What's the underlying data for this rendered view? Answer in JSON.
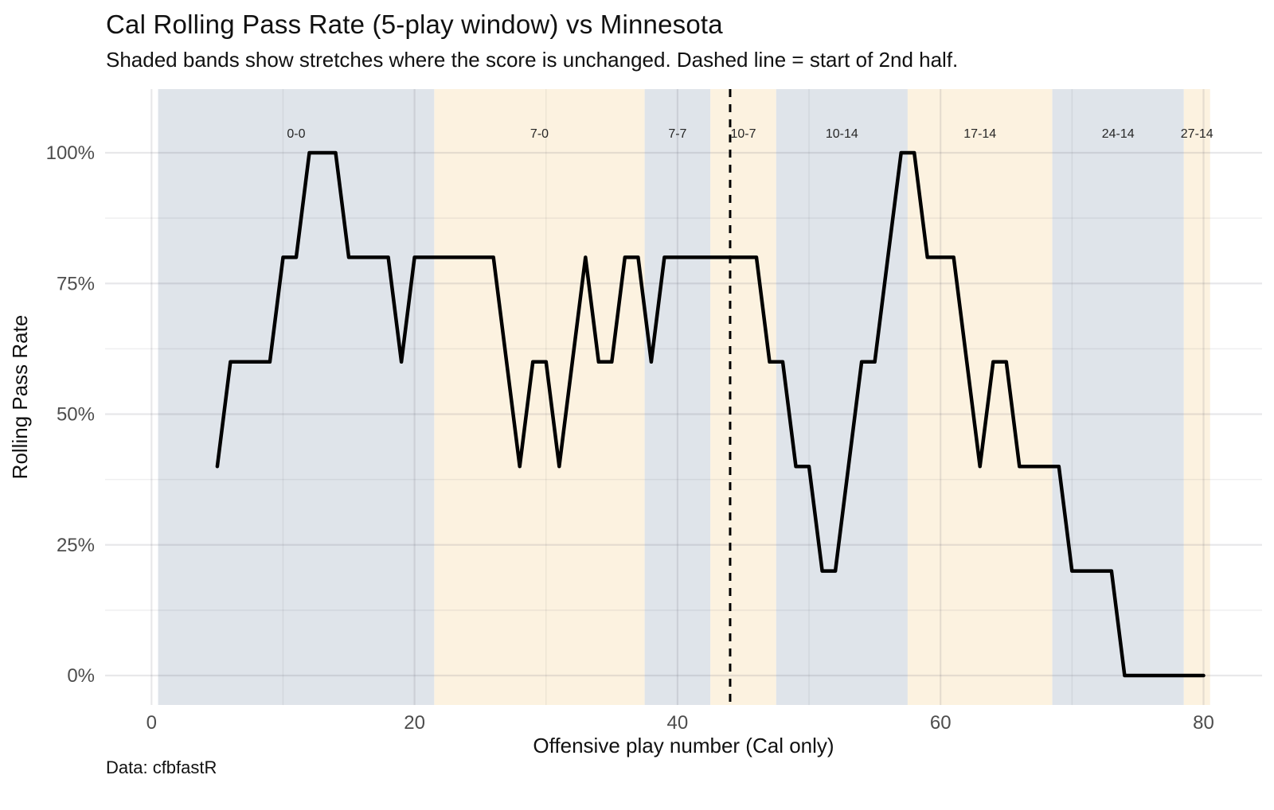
{
  "chart_data": {
    "type": "line",
    "title": "Cal Rolling Pass Rate (5-play window) vs Minnesota",
    "subtitle": "Shaded bands show stretches where the score is unchanged. Dashed line = start of 2nd half.",
    "caption": "Data: cfbfastR",
    "xlabel": "Offensive play number (Cal only)",
    "ylabel": "Rolling Pass Rate",
    "legend": "none",
    "grid": "major and minor, light on white panel",
    "xlim": [
      -3.5,
      84.5
    ],
    "ylim_pct": [
      -5.6,
      112.2
    ],
    "x_ticks": [
      {
        "v": 0,
        "label": "0"
      },
      {
        "v": 20,
        "label": "20"
      },
      {
        "v": 40,
        "label": "40"
      },
      {
        "v": 60,
        "label": "60"
      },
      {
        "v": 80,
        "label": "80"
      }
    ],
    "x_minor_ticks": [
      10,
      30,
      50,
      70
    ],
    "y_ticks": [
      {
        "v": 0,
        "label": "0%"
      },
      {
        "v": 25,
        "label": "25%"
      },
      {
        "v": 50,
        "label": "50%"
      },
      {
        "v": 75,
        "label": "75%"
      },
      {
        "v": 100,
        "label": "100%"
      }
    ],
    "y_minor_ticks": [
      12.5,
      37.5,
      62.5,
      87.5
    ],
    "halftime_line_x": 44,
    "score_bands": [
      {
        "label": "0-0",
        "start": 0.5,
        "end": 21.5,
        "tone": "blue"
      },
      {
        "label": "7-0",
        "start": 21.5,
        "end": 37.5,
        "tone": "cream"
      },
      {
        "label": "7-7",
        "start": 37.5,
        "end": 42.5,
        "tone": "blue"
      },
      {
        "label": "10-7",
        "start": 42.5,
        "end": 47.5,
        "tone": "cream"
      },
      {
        "label": "10-14",
        "start": 47.5,
        "end": 57.5,
        "tone": "blue"
      },
      {
        "label": "17-14",
        "start": 57.5,
        "end": 68.5,
        "tone": "cream"
      },
      {
        "label": "24-14",
        "start": 68.5,
        "end": 78.5,
        "tone": "blue"
      },
      {
        "label": "27-14",
        "start": 78.5,
        "end": 80.5,
        "tone": "cream"
      }
    ],
    "series": [
      {
        "name": "Cal rolling pass rate (%)",
        "x": [
          5,
          6,
          7,
          8,
          9,
          10,
          11,
          12,
          13,
          14,
          15,
          16,
          17,
          18,
          19,
          20,
          21,
          22,
          23,
          24,
          25,
          26,
          27,
          28,
          29,
          30,
          31,
          32,
          33,
          34,
          35,
          36,
          37,
          38,
          39,
          40,
          41,
          42,
          43,
          44,
          45,
          46,
          47,
          48,
          49,
          50,
          51,
          52,
          53,
          54,
          55,
          56,
          57,
          58,
          59,
          60,
          61,
          62,
          63,
          64,
          65,
          66,
          67,
          68,
          69,
          70,
          71,
          72,
          73,
          74,
          75,
          76,
          77,
          78,
          79,
          80
        ],
        "values": [
          40,
          60,
          60,
          60,
          60,
          80,
          80,
          100,
          100,
          100,
          80,
          80,
          80,
          80,
          60,
          80,
          80,
          80,
          80,
          80,
          80,
          80,
          60,
          40,
          60,
          60,
          40,
          60,
          80,
          60,
          60,
          80,
          80,
          60,
          80,
          80,
          80,
          80,
          80,
          80,
          80,
          80,
          60,
          60,
          40,
          40,
          20,
          20,
          40,
          60,
          60,
          80,
          100,
          100,
          80,
          80,
          80,
          60,
          40,
          60,
          60,
          40,
          40,
          40,
          40,
          20,
          20,
          20,
          20,
          0,
          0,
          0,
          0,
          0,
          0,
          0
        ]
      }
    ],
    "colors": {
      "band_blue": "#dfe4ea",
      "band_cream": "#fcf2e0",
      "line": "#000000",
      "dashed_line": "#000000",
      "grid_major": "rgba(75,80,92,0.13)",
      "grid_minor": "rgba(75,80,92,0.09)",
      "tick_text": "#4d4d4d",
      "band_label_text": "#262626",
      "text": "#111111"
    }
  }
}
